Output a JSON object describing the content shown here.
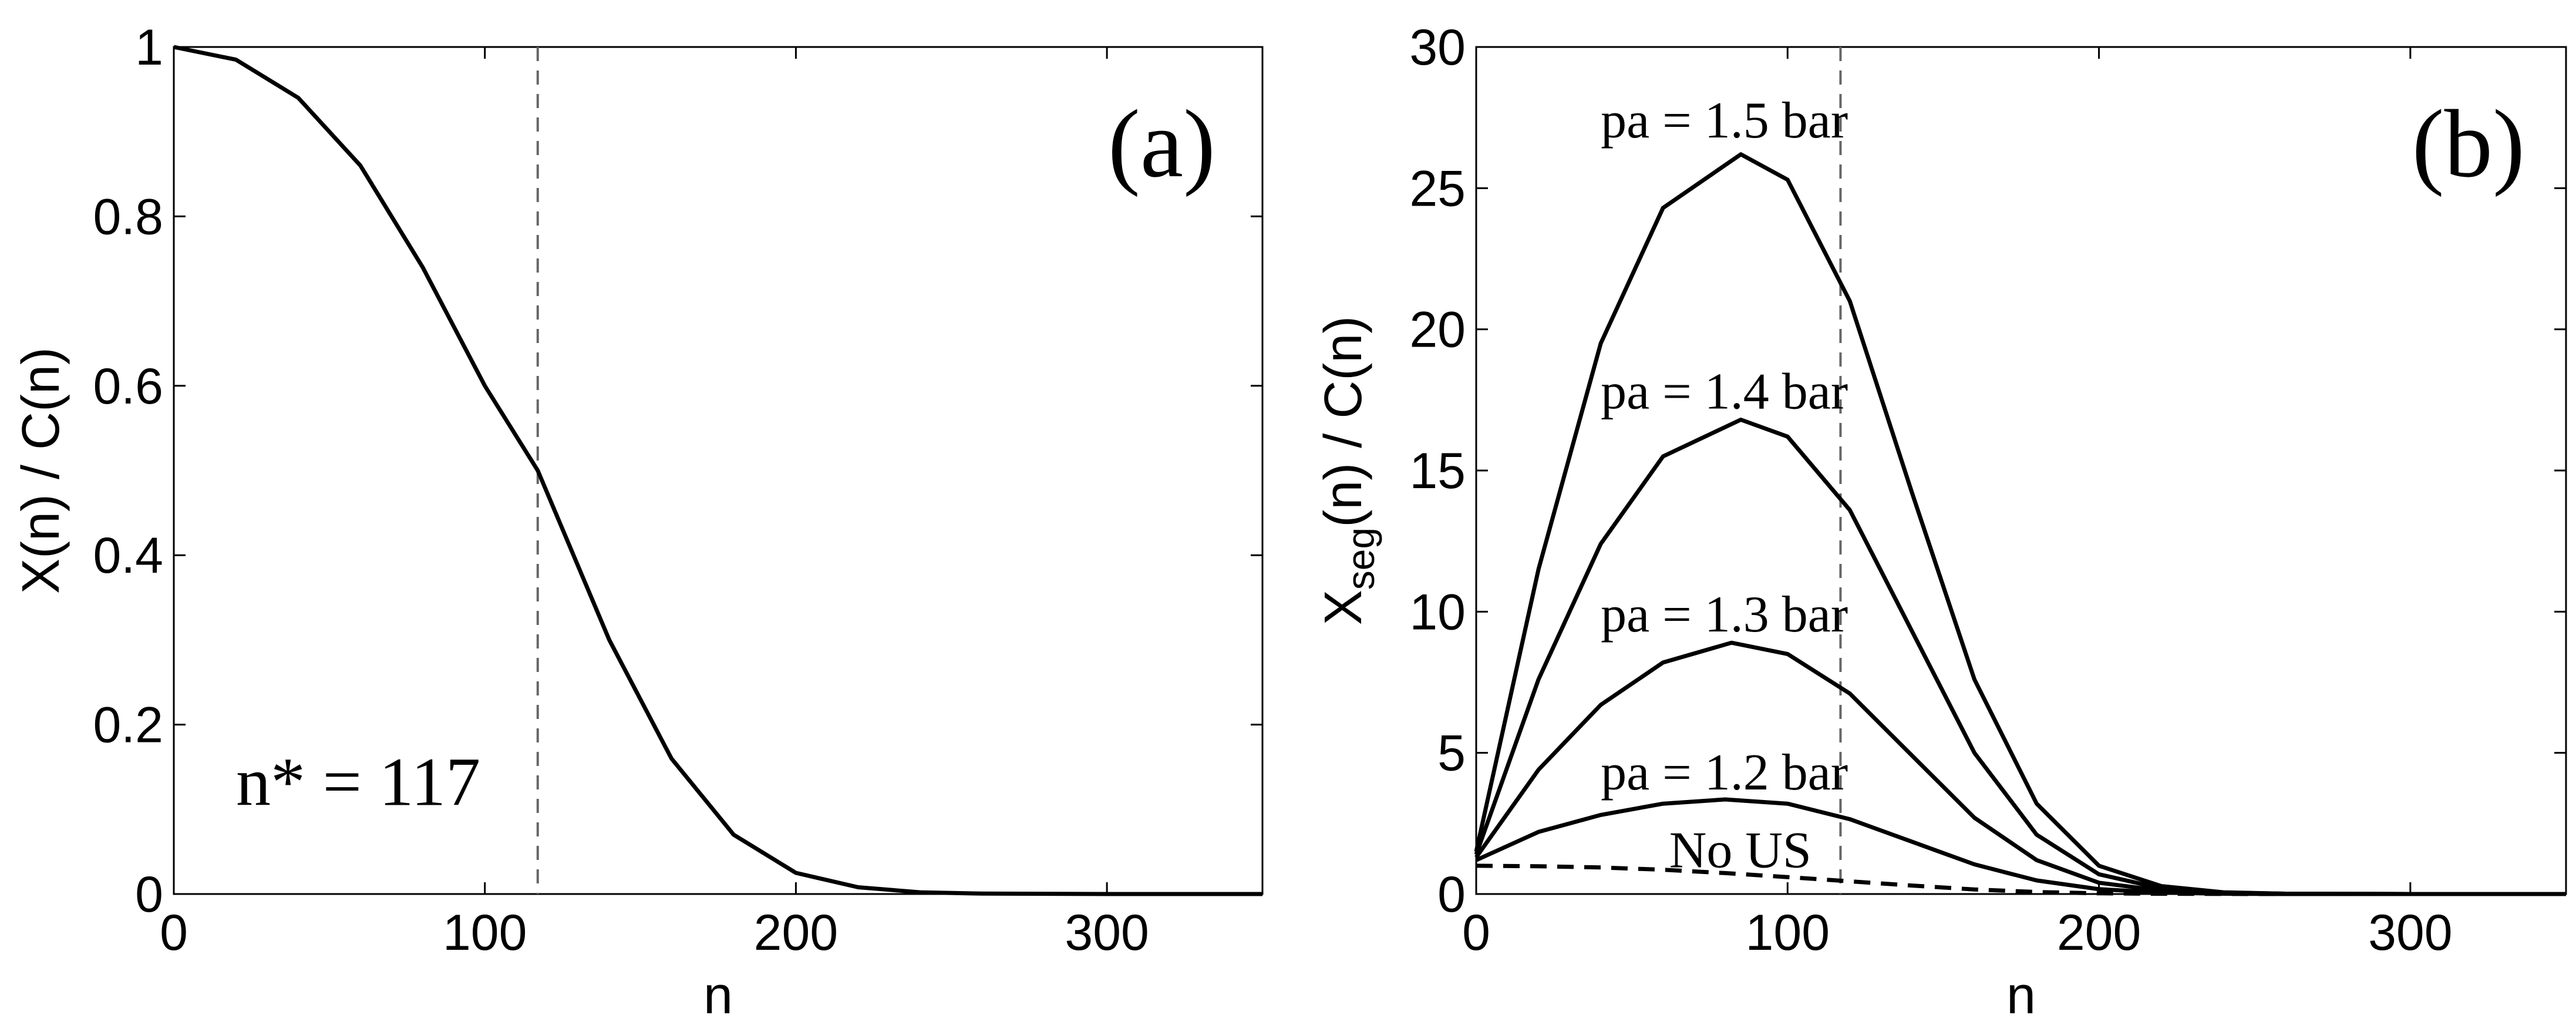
{
  "chart_data": [
    {
      "type": "line",
      "panel_label": "(a)",
      "xlabel": "n",
      "ylabel": "X(n) / C(n)",
      "xlim": [
        0,
        350
      ],
      "ylim": [
        0,
        1
      ],
      "xticks": [
        0,
        100,
        200,
        300
      ],
      "xtick_labels": [
        "0",
        "100",
        "200",
        "300"
      ],
      "yticks": [
        0,
        0.2,
        0.4,
        0.6,
        0.8,
        1
      ],
      "ytick_labels": [
        "0",
        "0.2",
        "0.4",
        "0.6",
        "0.8",
        "1"
      ],
      "grid": false,
      "vline": {
        "x": 117,
        "style": "dashed"
      },
      "annotation": {
        "text": "n* = 117",
        "x": 20,
        "y": 0.105
      },
      "series": [
        {
          "style": "solid",
          "x": [
            0,
            20,
            40,
            60,
            80,
            100,
            117,
            140,
            160,
            180,
            200,
            220,
            240,
            260,
            300,
            350
          ],
          "y": [
            1.0,
            0.985,
            0.94,
            0.86,
            0.74,
            0.6,
            0.5,
            0.3,
            0.16,
            0.07,
            0.025,
            0.008,
            0.002,
            0.0005,
            0.0,
            0.0
          ]
        }
      ]
    },
    {
      "type": "line",
      "panel_label": "(b)",
      "xlabel": "n",
      "ylabel_main": "X",
      "ylabel_sub": "seg",
      "ylabel_rest": "(n) / C(n)",
      "xlim": [
        0,
        350
      ],
      "ylim": [
        0,
        30
      ],
      "xticks": [
        0,
        100,
        200,
        300
      ],
      "xtick_labels": [
        "0",
        "100",
        "200",
        "300"
      ],
      "yticks": [
        0,
        5,
        10,
        15,
        20,
        25,
        30
      ],
      "ytick_labels": [
        "0",
        "5",
        "10",
        "15",
        "20",
        "25",
        "30"
      ],
      "grid": false,
      "vline": {
        "x": 117,
        "style": "dashed"
      },
      "series": [
        {
          "label": "pa = 1.5 bar",
          "label_pos": [
            40,
            26.8
          ],
          "style": "solid",
          "x": [
            0,
            20,
            40,
            60,
            85,
            100,
            120,
            140,
            160,
            180,
            200,
            220,
            240,
            260,
            300,
            350
          ],
          "y": [
            1.5,
            11.5,
            19.5,
            24.3,
            26.2,
            25.3,
            21.0,
            14.2,
            7.6,
            3.2,
            1.0,
            0.28,
            0.06,
            0.01,
            0.0,
            0.0
          ]
        },
        {
          "label": "pa = 1.4 bar",
          "label_pos": [
            40,
            17.2
          ],
          "style": "solid",
          "x": [
            0,
            20,
            40,
            60,
            85,
            100,
            120,
            140,
            160,
            180,
            200,
            220,
            240,
            260,
            300,
            350
          ],
          "y": [
            1.4,
            7.6,
            12.4,
            15.5,
            16.8,
            16.2,
            13.6,
            9.3,
            5.0,
            2.1,
            0.7,
            0.2,
            0.05,
            0.01,
            0.0,
            0.0
          ]
        },
        {
          "label": "pa = 1.3 bar",
          "label_pos": [
            40,
            9.3
          ],
          "style": "solid",
          "x": [
            0,
            20,
            40,
            60,
            82,
            100,
            120,
            140,
            160,
            180,
            200,
            220,
            240,
            260,
            300,
            350
          ],
          "y": [
            1.3,
            4.4,
            6.7,
            8.2,
            8.9,
            8.5,
            7.1,
            4.9,
            2.7,
            1.2,
            0.4,
            0.12,
            0.03,
            0.01,
            0.0,
            0.0
          ]
        },
        {
          "label": "pa = 1.2 bar",
          "label_pos": [
            40,
            3.7
          ],
          "style": "solid",
          "x": [
            0,
            20,
            40,
            60,
            80,
            100,
            120,
            140,
            160,
            180,
            200,
            220,
            240,
            260,
            300,
            350
          ],
          "y": [
            1.2,
            2.2,
            2.8,
            3.2,
            3.35,
            3.2,
            2.65,
            1.85,
            1.05,
            0.48,
            0.17,
            0.05,
            0.01,
            0.0,
            0.0,
            0.0
          ]
        },
        {
          "label": "No US",
          "label_pos": [
            62,
            0.95
          ],
          "style": "dashed",
          "x": [
            0,
            20,
            40,
            60,
            80,
            100,
            120,
            140,
            160,
            180,
            200,
            220,
            250,
            300,
            350
          ],
          "y": [
            1.0,
            0.985,
            0.94,
            0.86,
            0.74,
            0.6,
            0.45,
            0.3,
            0.16,
            0.07,
            0.025,
            0.008,
            0.001,
            0.0,
            0.0
          ]
        }
      ]
    }
  ]
}
